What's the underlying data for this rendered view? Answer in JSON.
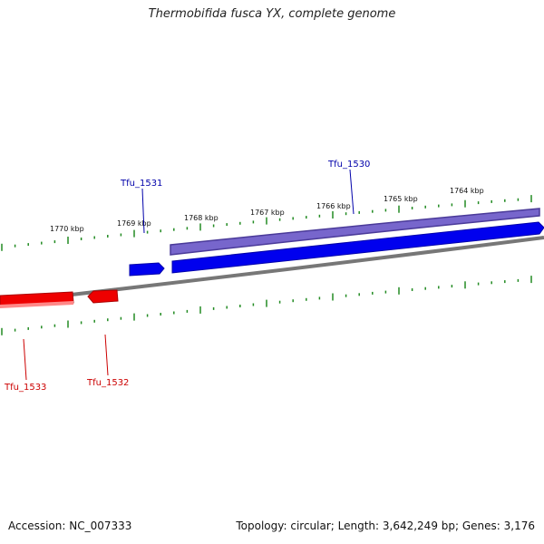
{
  "title": "Thermobifida fusca YX, complete genome",
  "footer": {
    "accession": "Accession: NC_007333",
    "summary": "Topology: circular; Length: 3,642,249 bp; Genes: 3,176"
  },
  "colors": {
    "forward_gene": "#0000ee",
    "forward_outline": "#6655cc",
    "reverse_gene": "#ee0000",
    "backbone": "#888888",
    "tick": "#228b22"
  },
  "scale_ticks": [
    "1770 kbp",
    "1769 kbp",
    "1768 kbp",
    "1767 kbp",
    "1766 kbp",
    "1765 kbp",
    "1764 kbp"
  ],
  "genes": {
    "forward": [
      {
        "label": "Tfu_1531"
      },
      {
        "label": "Tfu_1530"
      }
    ],
    "reverse": [
      {
        "label": "Tfu_1533"
      },
      {
        "label": "Tfu_1532"
      }
    ]
  }
}
